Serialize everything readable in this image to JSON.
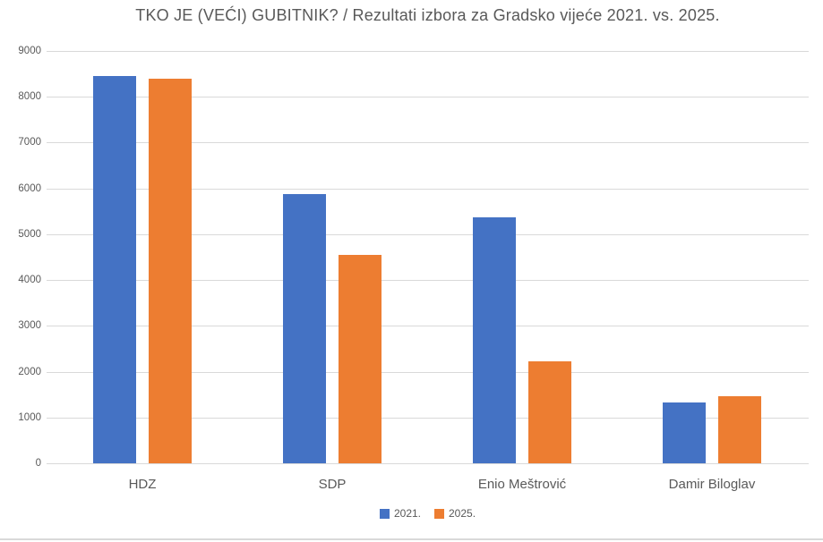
{
  "chart_data": {
    "type": "bar",
    "title": "TKO JE (VEĆI) GUBITNIK? / Rezultati izbora za Gradsko vijeće 2021. vs. 2025.",
    "categories": [
      "HDZ",
      "SDP",
      "Enio Meštrović",
      "Damir Biloglav"
    ],
    "series": [
      {
        "name": "2021.",
        "color": "#4472C4",
        "values": [
          8460,
          5880,
          5360,
          1330
        ]
      },
      {
        "name": "2025.",
        "color": "#ED7D31",
        "values": [
          8390,
          4550,
          2220,
          1470
        ]
      }
    ],
    "xlabel": "",
    "ylabel": "",
    "ylim": [
      0,
      9000
    ],
    "ytick_step": 1000,
    "yticks": [
      0,
      1000,
      2000,
      3000,
      4000,
      5000,
      6000,
      7000,
      8000,
      9000
    ],
    "grid": "horizontal",
    "legend_position": "bottom-center",
    "colors": {
      "series_2021": "#4472C4",
      "series_2025": "#ED7D31",
      "text": "#595959",
      "gridline": "#D9D9D9",
      "background": "#FFFFFF"
    }
  }
}
